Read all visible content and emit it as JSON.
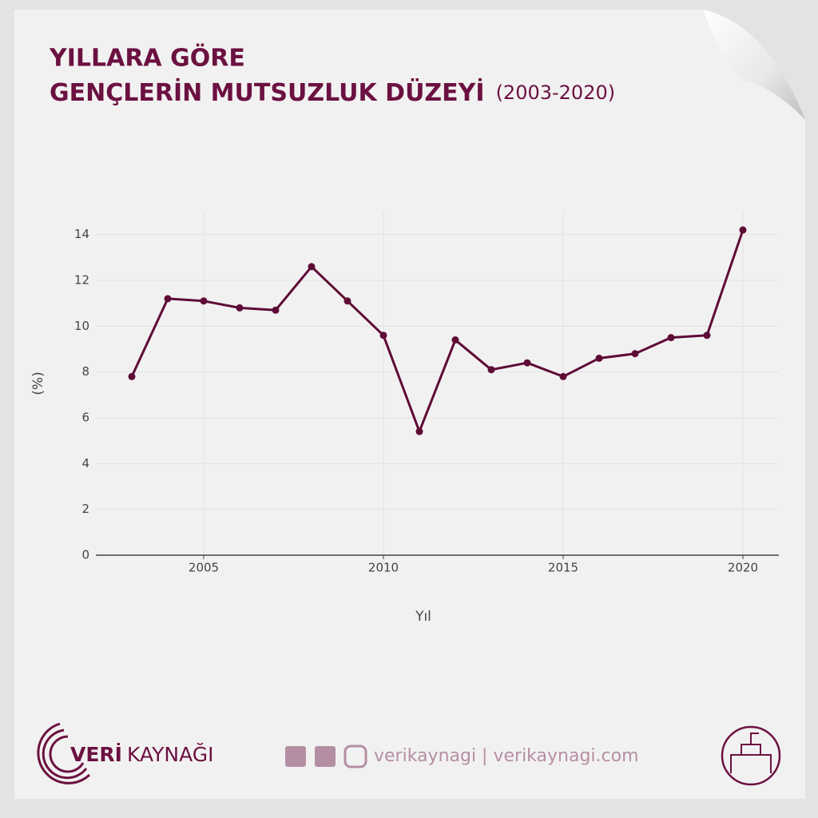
{
  "chart_data": {
    "type": "line",
    "title": "YILLARA GÖRE",
    "title_line2": "GENÇLERİN MUTSUZLUK DÜZEYİ",
    "subtitle": "(2003-2020)",
    "x_label": "Yıl",
    "y_label": "(%)",
    "x": [
      2003,
      2004,
      2005,
      2006,
      2007,
      2008,
      2009,
      2010,
      2011,
      2012,
      2013,
      2014,
      2015,
      2016,
      2017,
      2018,
      2019,
      2020
    ],
    "values": [
      7.8,
      11.2,
      11.1,
      10.8,
      10.7,
      12.6,
      11.1,
      9.6,
      5.4,
      9.4,
      8.1,
      8.4,
      7.8,
      8.6,
      8.8,
      9.5,
      9.6,
      14.2
    ],
    "color": "#5e0b36",
    "xlim": [
      2002,
      2021
    ],
    "xticks": [
      2005,
      2010,
      2015,
      2020
    ],
    "ylim": [
      0,
      15
    ],
    "yticks": [
      0,
      2,
      4,
      6,
      8,
      10,
      12,
      14
    ],
    "grid": true
  },
  "footer": {
    "brand_bold": "VERİ",
    "brand_light": "KAYNAĞI",
    "social": "verikaynagi | verikaynagi.com"
  }
}
